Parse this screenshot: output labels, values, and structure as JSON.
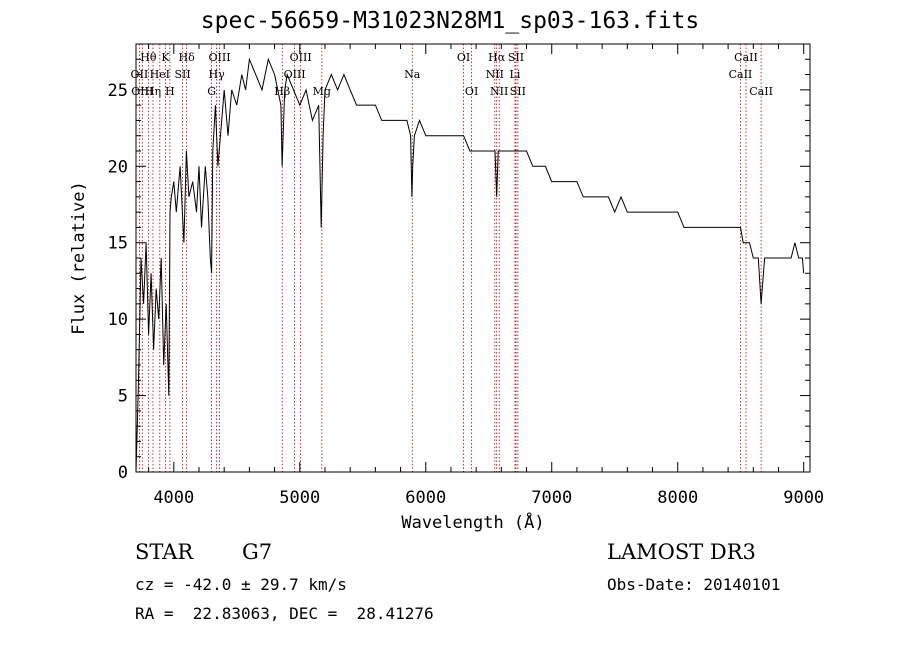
{
  "chart_data": {
    "type": "line",
    "title": "spec-56659-M31023N28M1_sp03-163.fits",
    "xlabel": "Wavelength (Å)",
    "ylabel": "Flux (relative)",
    "xlim": [
      3700,
      9050
    ],
    "ylim": [
      0,
      28
    ],
    "xticks": [
      "4000",
      "5000",
      "6000",
      "7000",
      "8000",
      "9000"
    ],
    "yticks": [
      "0",
      "5",
      "10",
      "15",
      "20",
      "25"
    ],
    "series": [
      {
        "name": "spectrum",
        "x": [
          3700,
          3710,
          3720,
          3730,
          3740,
          3760,
          3780,
          3800,
          3820,
          3840,
          3860,
          3880,
          3900,
          3920,
          3940,
          3960,
          3970,
          3980,
          4000,
          4020,
          4050,
          4080,
          4100,
          4120,
          4150,
          4180,
          4200,
          4220,
          4250,
          4270,
          4290,
          4300,
          4310,
          4330,
          4350,
          4380,
          4400,
          4430,
          4460,
          4500,
          4540,
          4570,
          4600,
          4650,
          4700,
          4750,
          4800,
          4850,
          4860,
          4880,
          4900,
          4950,
          5000,
          5050,
          5100,
          5150,
          5170,
          5185,
          5200,
          5250,
          5300,
          5350,
          5400,
          5450,
          5500,
          5550,
          5600,
          5650,
          5700,
          5750,
          5800,
          5850,
          5880,
          5890,
          5896,
          5910,
          5950,
          6000,
          6050,
          6100,
          6150,
          6200,
          6250,
          6300,
          6350,
          6400,
          6450,
          6500,
          6550,
          6563,
          6575,
          6600,
          6650,
          6700,
          6750,
          6800,
          6850,
          6900,
          6950,
          7000,
          7050,
          7100,
          7150,
          7200,
          7250,
          7300,
          7350,
          7400,
          7450,
          7500,
          7550,
          7600,
          7650,
          7700,
          7750,
          7800,
          7850,
          7900,
          7950,
          8000,
          8050,
          8100,
          8150,
          8200,
          8250,
          8300,
          8350,
          8400,
          8450,
          8498,
          8520,
          8542,
          8570,
          8600,
          8640,
          8662,
          8690,
          8720,
          8760,
          8800,
          8850,
          8900,
          8930,
          8960,
          8990,
          9000
        ],
        "values": [
          0,
          3,
          6,
          10,
          14,
          11,
          15,
          9,
          13,
          8,
          12,
          10,
          14,
          7,
          11,
          5,
          17,
          18,
          19,
          17,
          20,
          15,
          21,
          18,
          19,
          17,
          20,
          16,
          20,
          18,
          14,
          13,
          21,
          24,
          20,
          23,
          25,
          22,
          25,
          24,
          26,
          25,
          27,
          26,
          25,
          27,
          26,
          24,
          20,
          25,
          26,
          25,
          24,
          25,
          23,
          24,
          16,
          22,
          25,
          26,
          25,
          26,
          25,
          24,
          24,
          24,
          24,
          23,
          23,
          23,
          23,
          23,
          22,
          18,
          20,
          22,
          23,
          22,
          22,
          22,
          22,
          22,
          22,
          22,
          21,
          21,
          21,
          21,
          21,
          18,
          21,
          21,
          21,
          21,
          21,
          21,
          20,
          20,
          20,
          19,
          19,
          19,
          19,
          19,
          18,
          18,
          18,
          18,
          18,
          17,
          18,
          17,
          17,
          17,
          17,
          17,
          17,
          17,
          17,
          17,
          16,
          16,
          16,
          16,
          16,
          16,
          16,
          16,
          16,
          16,
          15,
          15,
          15,
          14,
          14,
          11,
          14,
          14,
          14,
          14,
          14,
          14,
          15,
          14,
          14,
          13
        ]
      }
    ],
    "lines": [
      {
        "label": "Hθ",
        "x": 3798,
        "row": 0
      },
      {
        "label": "OII",
        "x": 3727,
        "row": 1
      },
      {
        "label": "OIII",
        "x": 3750,
        "row": 2
      },
      {
        "label": "K",
        "x": 3934,
        "row": 0
      },
      {
        "label": "HeI",
        "x": 3889,
        "row": 1
      },
      {
        "label": "Hη",
        "x": 3835,
        "row": 2
      },
      {
        "label": "H",
        "x": 3969,
        "row": 2
      },
      {
        "label": "Hδ",
        "x": 4102,
        "row": 0
      },
      {
        "label": "SII",
        "x": 4070,
        "row": 1
      },
      {
        "label": "OIII",
        "x": 4363,
        "row": 0
      },
      {
        "label": "Hγ",
        "x": 4340,
        "row": 1
      },
      {
        "label": "G",
        "x": 4300,
        "row": 2
      },
      {
        "label": "OIII",
        "x": 5007,
        "row": 0
      },
      {
        "label": "OIII",
        "x": 4959,
        "row": 1
      },
      {
        "label": "Hβ",
        "x": 4861,
        "row": 2
      },
      {
        "label": "Mg",
        "x": 5175,
        "row": 2
      },
      {
        "label": "Na",
        "x": 5893,
        "row": 1
      },
      {
        "label": "OI",
        "x": 6300,
        "row": 0
      },
      {
        "label": "OI",
        "x": 6364,
        "row": 2
      },
      {
        "label": "Hα",
        "x": 6563,
        "row": 0
      },
      {
        "label": "NII",
        "x": 6548,
        "row": 1
      },
      {
        "label": "NII",
        "x": 6583,
        "row": 2
      },
      {
        "label": "SII",
        "x": 6716,
        "row": 0
      },
      {
        "label": "Li",
        "x": 6708,
        "row": 1
      },
      {
        "label": "SII",
        "x": 6731,
        "row": 2
      },
      {
        "label": "CaII",
        "x": 8542,
        "row": 0
      },
      {
        "label": "CaII",
        "x": 8498,
        "row": 1
      },
      {
        "label": "CaII",
        "x": 8662,
        "row": 2
      }
    ],
    "line_color": "#b00000"
  },
  "info": {
    "class": "STAR",
    "subclass": "G7",
    "survey": "LAMOST DR3",
    "cz": "cz = -42.0 ± 29.7 km/s",
    "obs_date": "Obs-Date: 20140101",
    "coords": "RA =  22.83063, DEC =  28.41276"
  }
}
